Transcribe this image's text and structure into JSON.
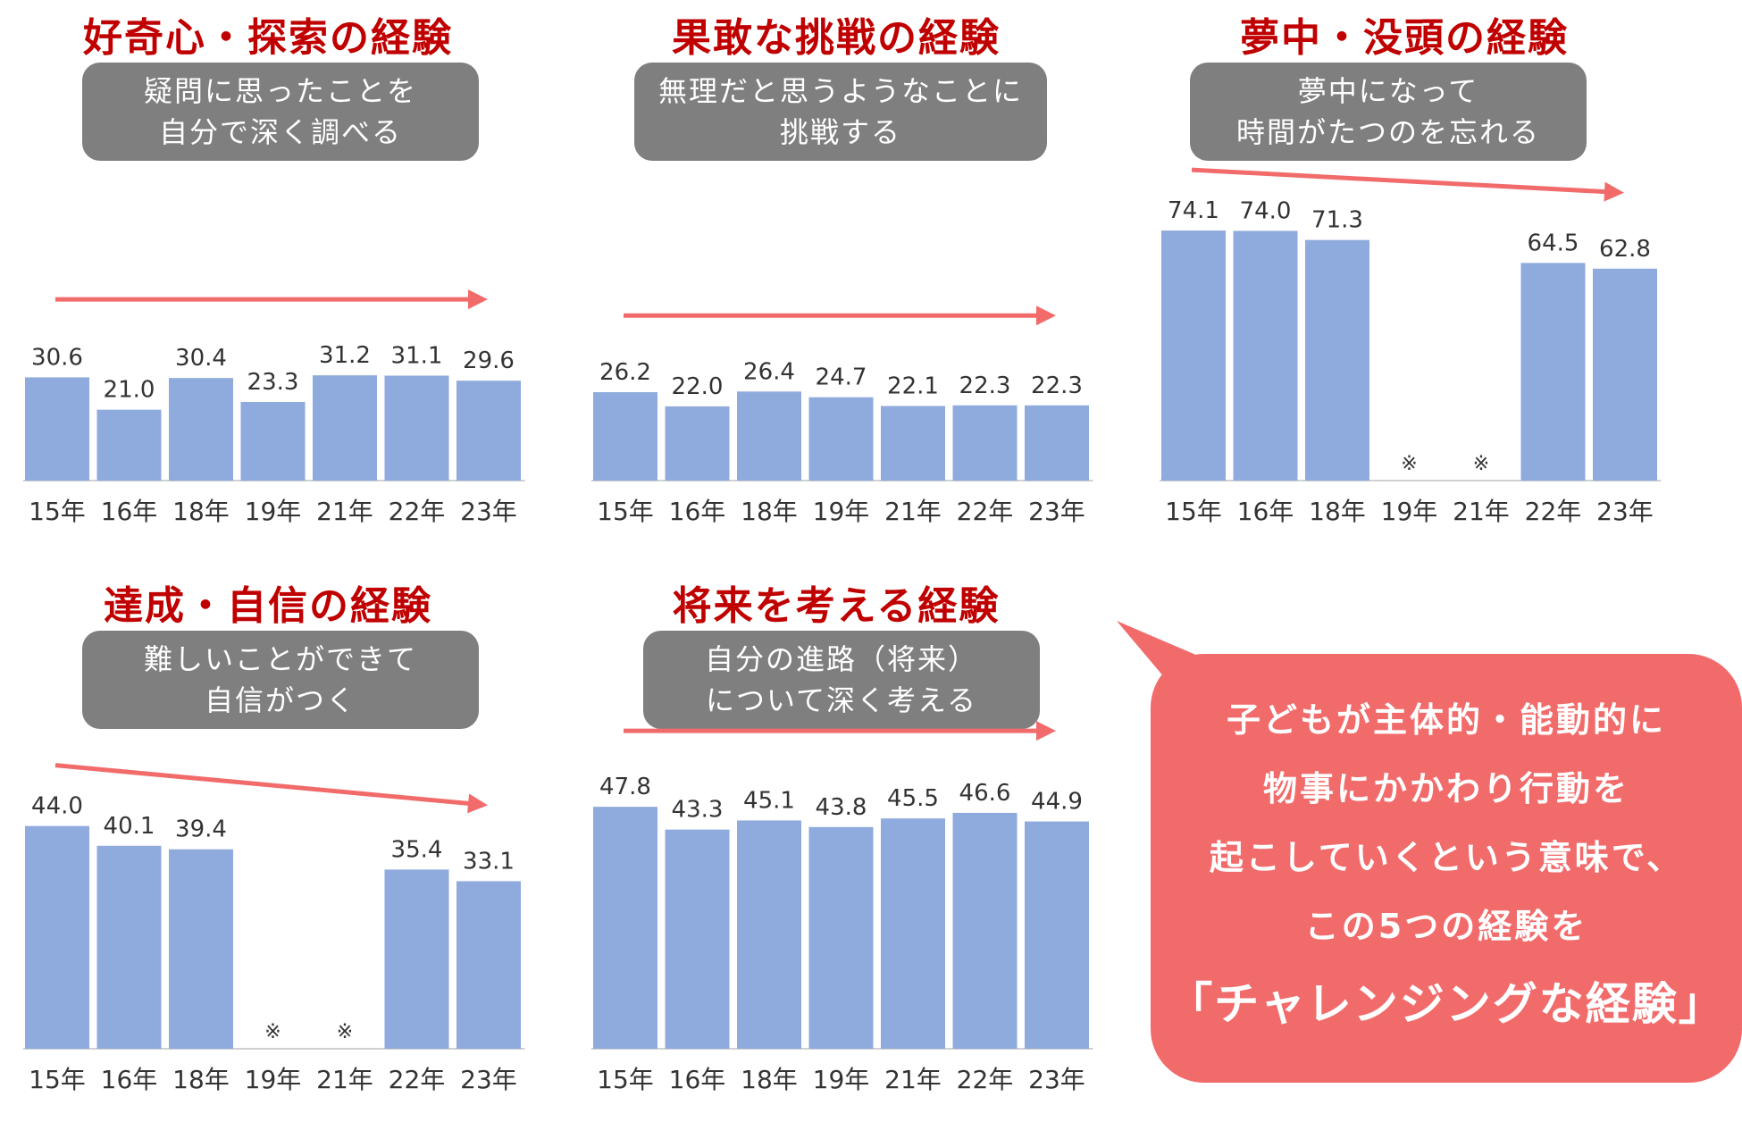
{
  "colors": {
    "title": "#c00000",
    "box": "#7f7f7f",
    "bar": "#8faadc",
    "arrow": "#f26b6b",
    "callout": "#f26b6b",
    "axis": "#d0d0d0",
    "text": "#333333"
  },
  "chart_data": [
    {
      "type": "bar",
      "title": "好奇心・探索の経験",
      "description": [
        "疑問に思ったことを",
        "自分で深く調べる"
      ],
      "categories": [
        "15年",
        "16年",
        "18年",
        "19年",
        "21年",
        "22年",
        "23年"
      ],
      "values": [
        30.6,
        21.0,
        30.4,
        23.3,
        31.2,
        31.1,
        29.6
      ],
      "labels": [
        "30.6",
        "21.0",
        "30.4",
        "23.3",
        "31.2",
        "31.1",
        "29.6"
      ],
      "ylim": [
        0,
        90
      ],
      "trend": "flat"
    },
    {
      "type": "bar",
      "title": "果敢な挑戦の経験",
      "description": [
        "無理だと思うようなことに",
        "挑戦する"
      ],
      "categories": [
        "15年",
        "16年",
        "18年",
        "19年",
        "21年",
        "22年",
        "23年"
      ],
      "values": [
        26.2,
        22.0,
        26.4,
        24.7,
        22.1,
        22.3,
        22.3
      ],
      "labels": [
        "26.2",
        "22.0",
        "26.4",
        "24.7",
        "22.1",
        "22.3",
        "22.3"
      ],
      "ylim": [
        0,
        90
      ],
      "trend": "flat"
    },
    {
      "type": "bar",
      "title": "夢中・没頭の経験",
      "description": [
        "夢中になって",
        "時間がたつのを忘れる"
      ],
      "categories": [
        "15年",
        "16年",
        "18年",
        "19年",
        "21年",
        "22年",
        "23年"
      ],
      "values": [
        74.1,
        74.0,
        71.3,
        null,
        null,
        64.5,
        62.8
      ],
      "labels": [
        "74.1",
        "74.0",
        "71.3",
        "※",
        "※",
        "64.5",
        "62.8"
      ],
      "ylim": [
        0,
        90
      ],
      "trend": "down"
    },
    {
      "type": "bar",
      "title": "達成・自信の経験",
      "description": [
        "難しいことができて",
        "自信がつく"
      ],
      "categories": [
        "15年",
        "16年",
        "18年",
        "19年",
        "21年",
        "22年",
        "23年"
      ],
      "values": [
        44.0,
        40.1,
        39.4,
        null,
        null,
        35.4,
        33.1
      ],
      "labels": [
        "44.0",
        "40.1",
        "39.4",
        "※",
        "※",
        "35.4",
        "33.1"
      ],
      "ylim": [
        0,
        60
      ],
      "trend": "down"
    },
    {
      "type": "bar",
      "title": "将来を考える経験",
      "description": [
        "自分の進路（将来）",
        "について深く考える"
      ],
      "categories": [
        "15年",
        "16年",
        "18年",
        "19年",
        "21年",
        "22年",
        "23年"
      ],
      "values": [
        47.8,
        43.3,
        45.1,
        43.8,
        45.5,
        46.6,
        44.9
      ],
      "labels": [
        "47.8",
        "43.3",
        "45.1",
        "43.8",
        "45.5",
        "46.6",
        "44.9"
      ],
      "ylim": [
        0,
        60
      ],
      "trend": "flat"
    }
  ],
  "callout": {
    "lines": [
      "子どもが主体的・能動的に",
      "物事にかかわり行動を",
      "起こしていくという意味で、",
      "この5つの経験を"
    ],
    "emphasis": "「チャレンジングな経験」"
  }
}
